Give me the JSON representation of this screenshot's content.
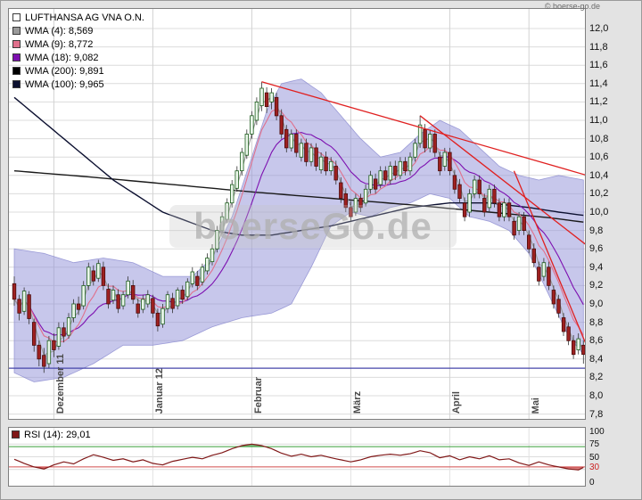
{
  "window": {
    "copyright": "© boerse-go.de"
  },
  "watermark": "boerseGo.de",
  "legend": {
    "items": [
      {
        "label": "WMA (4): 8,569",
        "color": "#9a9a9a"
      },
      {
        "label": "WMA (9): 8,772",
        "color": "#e0708c"
      },
      {
        "label": "WMA (18): 9,082",
        "color": "#7d10b0"
      },
      {
        "label": "WMA (200): 9,891",
        "color": "#000000"
      },
      {
        "label": "WMA (100): 9,965",
        "color": "#0c1030"
      }
    ]
  },
  "chart_data": {
    "type": "candlestick",
    "title": "LUFTHANSA AG VNA O.N.",
    "y_axis": {
      "min": 7.8,
      "max": 12.0,
      "step": 0.2,
      "labels": [
        "12,0",
        "11,8",
        "11,6",
        "11,4",
        "11,2",
        "11,0",
        "10,8",
        "10,6",
        "10,4",
        "10,2",
        "10,0",
        "9,8",
        "9,6",
        "9,4",
        "9,2",
        "9,0",
        "8,8",
        "8,6",
        "8,4",
        "8,2",
        "8,0",
        "7,8"
      ]
    },
    "x_axis": {
      "total_days": 116,
      "months": [
        {
          "label": "Dezember 11",
          "day": 8
        },
        {
          "label": "Januar 12",
          "day": 28
        },
        {
          "label": "Februar",
          "day": 48
        },
        {
          "label": "März",
          "day": 68
        },
        {
          "label": "April",
          "day": 88
        },
        {
          "label": "Mai",
          "day": 104
        }
      ]
    },
    "support_line": 8.3,
    "ohlc": [
      [
        9.22,
        9.3,
        8.98,
        9.05
      ],
      [
        9.05,
        9.1,
        8.82,
        8.9
      ],
      [
        8.92,
        9.18,
        8.88,
        9.14
      ],
      [
        9.1,
        9.14,
        8.78,
        8.84
      ],
      [
        8.8,
        8.84,
        8.48,
        8.55
      ],
      [
        8.55,
        8.6,
        8.32,
        8.4
      ],
      [
        8.44,
        8.52,
        8.25,
        8.32
      ],
      [
        8.35,
        8.65,
        8.3,
        8.6
      ],
      [
        8.6,
        8.68,
        8.42,
        8.5
      ],
      [
        8.54,
        8.8,
        8.5,
        8.74
      ],
      [
        8.74,
        8.8,
        8.58,
        8.65
      ],
      [
        8.66,
        8.9,
        8.62,
        8.85
      ],
      [
        8.85,
        9.05,
        8.8,
        9.0
      ],
      [
        9.0,
        9.08,
        8.88,
        8.94
      ],
      [
        8.98,
        9.25,
        8.94,
        9.2
      ],
      [
        9.2,
        9.45,
        9.15,
        9.4
      ],
      [
        9.36,
        9.42,
        9.2,
        9.25
      ],
      [
        9.28,
        9.48,
        9.24,
        9.44
      ],
      [
        9.4,
        9.46,
        9.15,
        9.2
      ],
      [
        9.16,
        9.22,
        8.95,
        9.0
      ],
      [
        9.04,
        9.2,
        9.0,
        9.15
      ],
      [
        9.1,
        9.16,
        8.9,
        8.95
      ],
      [
        8.98,
        9.14,
        8.94,
        9.1
      ],
      [
        9.1,
        9.3,
        9.06,
        9.25
      ],
      [
        9.2,
        9.26,
        9.0,
        9.05
      ],
      [
        9.0,
        9.06,
        8.85,
        8.9
      ],
      [
        8.94,
        9.1,
        8.9,
        9.05
      ],
      [
        9.0,
        9.15,
        8.96,
        9.1
      ],
      [
        9.06,
        9.1,
        8.85,
        8.9
      ],
      [
        8.9,
        8.95,
        8.7,
        8.76
      ],
      [
        8.78,
        9.0,
        8.74,
        8.95
      ],
      [
        8.95,
        9.14,
        8.9,
        9.1
      ],
      [
        9.06,
        9.12,
        8.9,
        8.95
      ],
      [
        8.98,
        9.18,
        8.94,
        9.15
      ],
      [
        9.15,
        9.2,
        9.0,
        9.05
      ],
      [
        9.08,
        9.28,
        9.04,
        9.24
      ],
      [
        9.22,
        9.4,
        9.18,
        9.35
      ],
      [
        9.3,
        9.36,
        9.15,
        9.2
      ],
      [
        9.24,
        9.44,
        9.2,
        9.4
      ],
      [
        9.36,
        9.55,
        9.32,
        9.5
      ],
      [
        9.46,
        9.65,
        9.42,
        9.6
      ],
      [
        9.6,
        9.85,
        9.56,
        9.8
      ],
      [
        9.8,
        10.0,
        9.76,
        9.95
      ],
      [
        9.92,
        10.15,
        9.88,
        10.1
      ],
      [
        10.1,
        10.35,
        10.05,
        10.3
      ],
      [
        10.26,
        10.5,
        10.22,
        10.45
      ],
      [
        10.45,
        10.7,
        10.4,
        10.65
      ],
      [
        10.62,
        10.9,
        10.58,
        10.85
      ],
      [
        10.85,
        11.1,
        10.8,
        11.05
      ],
      [
        11.0,
        11.25,
        10.95,
        11.2
      ],
      [
        11.16,
        11.42,
        11.1,
        11.35
      ],
      [
        11.3,
        11.36,
        11.08,
        11.15
      ],
      [
        11.2,
        11.35,
        11.12,
        11.3
      ],
      [
        11.25,
        11.3,
        11.0,
        11.05
      ],
      [
        11.05,
        11.12,
        10.8,
        10.85
      ],
      [
        10.9,
        10.95,
        10.65,
        10.7
      ],
      [
        10.7,
        10.9,
        10.66,
        10.85
      ],
      [
        10.85,
        10.9,
        10.6,
        10.65
      ],
      [
        10.6,
        10.8,
        10.55,
        10.75
      ],
      [
        10.75,
        10.8,
        10.5,
        10.55
      ],
      [
        10.55,
        10.75,
        10.5,
        10.7
      ],
      [
        10.7,
        10.75,
        10.45,
        10.5
      ],
      [
        10.46,
        10.65,
        10.42,
        10.6
      ],
      [
        10.6,
        10.66,
        10.4,
        10.45
      ],
      [
        10.45,
        10.6,
        10.4,
        10.55
      ],
      [
        10.5,
        10.56,
        10.3,
        10.35
      ],
      [
        10.32,
        10.38,
        10.1,
        10.15
      ],
      [
        10.2,
        10.26,
        10.0,
        10.05
      ],
      [
        10.05,
        10.12,
        9.9,
        9.95
      ],
      [
        10.0,
        10.2,
        9.96,
        10.15
      ],
      [
        10.15,
        10.2,
        10.0,
        10.05
      ],
      [
        10.1,
        10.3,
        10.06,
        10.25
      ],
      [
        10.25,
        10.45,
        10.2,
        10.4
      ],
      [
        10.36,
        10.42,
        10.2,
        10.25
      ],
      [
        10.3,
        10.5,
        10.26,
        10.45
      ],
      [
        10.45,
        10.5,
        10.3,
        10.35
      ],
      [
        10.35,
        10.55,
        10.3,
        10.5
      ],
      [
        10.5,
        10.56,
        10.35,
        10.4
      ],
      [
        10.4,
        10.6,
        10.36,
        10.55
      ],
      [
        10.55,
        10.6,
        10.4,
        10.45
      ],
      [
        10.45,
        10.65,
        10.4,
        10.6
      ],
      [
        10.6,
        10.8,
        10.55,
        10.75
      ],
      [
        10.75,
        11.05,
        10.7,
        10.95
      ],
      [
        10.9,
        10.96,
        10.65,
        10.7
      ],
      [
        10.7,
        10.9,
        10.65,
        10.85
      ],
      [
        10.85,
        10.9,
        10.6,
        10.65
      ],
      [
        10.6,
        10.66,
        10.4,
        10.45
      ],
      [
        10.5,
        10.7,
        10.45,
        10.65
      ],
      [
        10.65,
        10.7,
        10.4,
        10.45
      ],
      [
        10.4,
        10.46,
        10.2,
        10.25
      ],
      [
        10.3,
        10.36,
        10.1,
        10.15
      ],
      [
        10.1,
        10.16,
        9.9,
        9.95
      ],
      [
        10.0,
        10.25,
        9.95,
        10.2
      ],
      [
        10.2,
        10.4,
        10.15,
        10.35
      ],
      [
        10.35,
        10.4,
        10.15,
        10.2
      ],
      [
        10.15,
        10.2,
        9.95,
        10.0
      ],
      [
        10.05,
        10.3,
        10.0,
        10.25
      ],
      [
        10.25,
        10.3,
        10.05,
        10.1
      ],
      [
        10.1,
        10.15,
        9.9,
        9.95
      ],
      [
        9.95,
        10.15,
        9.9,
        10.1
      ],
      [
        10.1,
        10.15,
        9.9,
        9.95
      ],
      [
        9.9,
        9.95,
        9.7,
        9.75
      ],
      [
        9.8,
        10.0,
        9.75,
        9.95
      ],
      [
        9.95,
        10.0,
        9.75,
        9.8
      ],
      [
        9.75,
        9.8,
        9.55,
        9.6
      ],
      [
        9.6,
        9.66,
        9.4,
        9.45
      ],
      [
        9.4,
        9.46,
        9.2,
        9.25
      ],
      [
        9.3,
        9.5,
        9.25,
        9.45
      ],
      [
        9.4,
        9.46,
        9.15,
        9.2
      ],
      [
        9.15,
        9.2,
        8.95,
        9.0
      ],
      [
        9.05,
        9.1,
        8.85,
        8.9
      ],
      [
        8.85,
        8.9,
        8.65,
        8.7
      ],
      [
        8.75,
        8.8,
        8.55,
        8.6
      ],
      [
        8.6,
        8.66,
        8.4,
        8.45
      ],
      [
        8.5,
        8.68,
        8.45,
        8.62
      ],
      [
        8.55,
        8.6,
        8.35,
        8.45
      ]
    ],
    "bollinger": {
      "upper": [
        [
          0,
          9.6
        ],
        [
          6,
          9.55
        ],
        [
          12,
          9.45
        ],
        [
          18,
          9.5
        ],
        [
          24,
          9.45
        ],
        [
          30,
          9.3
        ],
        [
          36,
          9.3
        ],
        [
          40,
          9.5
        ],
        [
          44,
          9.95
        ],
        [
          48,
          10.6
        ],
        [
          51,
          11.1
        ],
        [
          54,
          11.4
        ],
        [
          58,
          11.45
        ],
        [
          62,
          11.3
        ],
        [
          66,
          11.05
        ],
        [
          70,
          10.8
        ],
        [
          74,
          10.6
        ],
        [
          78,
          10.65
        ],
        [
          82,
          10.85
        ],
        [
          86,
          11.0
        ],
        [
          90,
          10.9
        ],
        [
          94,
          10.7
        ],
        [
          98,
          10.5
        ],
        [
          102,
          10.4
        ],
        [
          106,
          10.35
        ],
        [
          110,
          10.4
        ],
        [
          115,
          10.35
        ]
      ],
      "lower": [
        [
          0,
          8.25
        ],
        [
          4,
          8.15
        ],
        [
          10,
          8.2
        ],
        [
          16,
          8.35
        ],
        [
          22,
          8.55
        ],
        [
          28,
          8.55
        ],
        [
          34,
          8.6
        ],
        [
          40,
          8.75
        ],
        [
          46,
          8.85
        ],
        [
          52,
          8.9
        ],
        [
          56,
          9.0
        ],
        [
          60,
          9.4
        ],
        [
          64,
          9.85
        ],
        [
          68,
          10.0
        ],
        [
          72,
          9.95
        ],
        [
          76,
          10.05
        ],
        [
          80,
          10.1
        ],
        [
          84,
          10.2
        ],
        [
          88,
          10.15
        ],
        [
          92,
          9.95
        ],
        [
          96,
          9.9
        ],
        [
          100,
          9.8
        ],
        [
          104,
          9.55
        ],
        [
          108,
          9.1
        ],
        [
          112,
          8.65
        ],
        [
          115,
          8.45
        ]
      ]
    },
    "wma100": [
      [
        0,
        11.25
      ],
      [
        10,
        10.8
      ],
      [
        20,
        10.35
      ],
      [
        30,
        10.0
      ],
      [
        40,
        9.8
      ],
      [
        46,
        9.75
      ],
      [
        52,
        9.75
      ],
      [
        58,
        9.8
      ],
      [
        64,
        9.85
      ],
      [
        72,
        9.95
      ],
      [
        80,
        10.05
      ],
      [
        88,
        10.1
      ],
      [
        96,
        10.1
      ],
      [
        104,
        10.05
      ],
      [
        110,
        10.0
      ],
      [
        115,
        9.965
      ]
    ],
    "wma200": [
      [
        0,
        10.45
      ],
      [
        16,
        10.38
      ],
      [
        32,
        10.3
      ],
      [
        48,
        10.22
      ],
      [
        64,
        10.15
      ],
      [
        80,
        10.08
      ],
      [
        96,
        10.0
      ],
      [
        108,
        9.94
      ],
      [
        115,
        9.891
      ]
    ],
    "trend_lines": [
      [
        50,
        11.42,
        119,
        10.35
      ],
      [
        82,
        11.05,
        119,
        9.5
      ],
      [
        101,
        10.45,
        116,
        8.5
      ]
    ],
    "colors": {
      "band": "#8f8fd8",
      "band_edge": "#8a8ad0",
      "candle_up": "#eaf7ea",
      "candle_up_border": "#1c5c1c",
      "candle_down": "#9e2020",
      "candle_down_border": "#4c0d0d",
      "wick": "#333333",
      "wma4": "#9a9a9a",
      "wma9": "#e0708c",
      "wma18": "#7d10b0",
      "wma100": "#0c1030",
      "wma200": "#1a1a1a",
      "trend": "#e02020",
      "support": "#4646aa",
      "rsi": "#801818",
      "rsi_over": "#2e8b2e",
      "rsi_under": "#bb2222"
    },
    "rsi": {
      "label": "RSI (14): 29,01",
      "period": 14,
      "value": 29.01,
      "overbought": 70,
      "oversold": 30,
      "labels": [
        {
          "text": "100",
          "value": 100,
          "color": "#101010"
        },
        {
          "text": "75",
          "value": 75,
          "color": "#101010"
        },
        {
          "text": "50",
          "value": 50,
          "color": "#101010"
        },
        {
          "text": "30",
          "value": 30,
          "color": "#cc2222"
        },
        {
          "text": "0",
          "value": 0,
          "color": "#101010"
        }
      ],
      "keyframes": [
        [
          0,
          45
        ],
        [
          2,
          37
        ],
        [
          4,
          30
        ],
        [
          6,
          26
        ],
        [
          8,
          34
        ],
        [
          10,
          40
        ],
        [
          12,
          36
        ],
        [
          14,
          46
        ],
        [
          16,
          54
        ],
        [
          18,
          49
        ],
        [
          20,
          43
        ],
        [
          22,
          46
        ],
        [
          24,
          40
        ],
        [
          26,
          44
        ],
        [
          28,
          37
        ],
        [
          30,
          34
        ],
        [
          32,
          41
        ],
        [
          34,
          45
        ],
        [
          36,
          49
        ],
        [
          38,
          46
        ],
        [
          40,
          53
        ],
        [
          42,
          58
        ],
        [
          44,
          66
        ],
        [
          46,
          72
        ],
        [
          48,
          75
        ],
        [
          50,
          72
        ],
        [
          52,
          66
        ],
        [
          54,
          57
        ],
        [
          56,
          51
        ],
        [
          58,
          55
        ],
        [
          60,
          50
        ],
        [
          62,
          53
        ],
        [
          64,
          48
        ],
        [
          66,
          44
        ],
        [
          68,
          40
        ],
        [
          70,
          44
        ],
        [
          72,
          50
        ],
        [
          74,
          53
        ],
        [
          76,
          55
        ],
        [
          78,
          53
        ],
        [
          80,
          56
        ],
        [
          82,
          62
        ],
        [
          84,
          58
        ],
        [
          86,
          48
        ],
        [
          88,
          52
        ],
        [
          90,
          44
        ],
        [
          92,
          50
        ],
        [
          94,
          46
        ],
        [
          96,
          52
        ],
        [
          98,
          44
        ],
        [
          100,
          46
        ],
        [
          102,
          38
        ],
        [
          104,
          33
        ],
        [
          106,
          40
        ],
        [
          108,
          34
        ],
        [
          110,
          30
        ],
        [
          112,
          26
        ],
        [
          114,
          24
        ],
        [
          115,
          29
        ]
      ]
    }
  }
}
